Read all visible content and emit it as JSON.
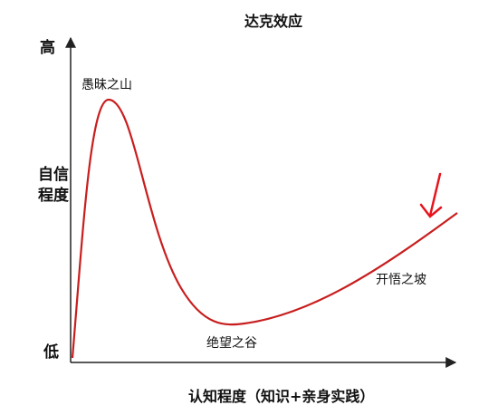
{
  "title": "达克效应",
  "y_axis": {
    "label": "自信程度",
    "high": "高",
    "low": "低"
  },
  "x_axis": {
    "label": "认知程度（知识+亲身实践）"
  },
  "stages": [
    {
      "label": "愚昧之山"
    },
    {
      "label": "绝望之谷"
    },
    {
      "label": "开悟之坡"
    }
  ]
}
